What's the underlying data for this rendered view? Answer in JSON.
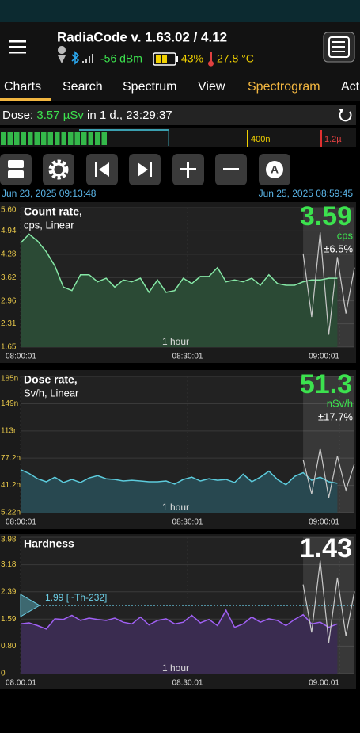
{
  "header": {
    "title": "RadiaCode v. 1.63.02 / 4.12",
    "signal": "-56 dBm",
    "battery": "43%",
    "temperature": "27.8 °C"
  },
  "tabs": [
    "Charts",
    "Search",
    "Spectrum",
    "View",
    "Spectrogram",
    "Act"
  ],
  "dose": {
    "label": "Dose:",
    "value": "3.57 µSv",
    "duration": "in 1 d., 23:29:37"
  },
  "scale_marks": [
    "400n",
    "1.2µ"
  ],
  "button_label": "A",
  "time_range": {
    "start": "Jun 23, 2025 09:13:48",
    "end": "Jun 25, 2025 08:59:45"
  },
  "charts": [
    {
      "type": "line",
      "title": "Count rate,",
      "subtitle": "cps, Linear",
      "reading": "3.59",
      "reading_color": "#3ce24e",
      "unit": "cps",
      "error": "±6.5%",
      "window": "1 hour",
      "xticks": [
        "08:00:01",
        "08:30:01",
        "09:00:01"
      ],
      "ylim": [
        1.65,
        5.6
      ],
      "yticks": [
        {
          "value": 5.6,
          "label": "5.60"
        },
        4.94,
        4.28,
        3.62,
        2.96,
        2.31,
        1.65
      ],
      "series": [
        {
          "color": "#86e8a6",
          "fill": "#2b4a35",
          "values": [
            4.6,
            4.85,
            4.65,
            4.35,
            3.95,
            3.35,
            3.25,
            3.7,
            3.7,
            3.5,
            3.6,
            3.35,
            3.55,
            3.5,
            3.6,
            3.2,
            3.55,
            3.2,
            3.25,
            3.6,
            3.45,
            3.65,
            3.65,
            3.9,
            3.5,
            3.55,
            3.5,
            3.6,
            3.4,
            3.7,
            3.45,
            3.4,
            3.4,
            3.5,
            3.55,
            3.55,
            3.6,
            3.6,
            null,
            null
          ]
        },
        {
          "color": "#c8c8c8",
          "values": [
            null,
            null,
            null,
            null,
            null,
            null,
            null,
            null,
            null,
            null,
            null,
            null,
            null,
            null,
            null,
            null,
            null,
            null,
            null,
            null,
            null,
            null,
            null,
            null,
            null,
            null,
            null,
            null,
            null,
            null,
            null,
            null,
            null,
            4.3,
            2.5,
            4.9,
            2.0,
            4.2,
            2.6,
            3.9
          ]
        }
      ]
    },
    {
      "type": "line",
      "title": "Dose rate,",
      "subtitle": "Sv/h, Linear",
      "reading": "51.3",
      "reading_color": "#3ce24e",
      "unit": "nSv/h",
      "error": "±17.7%",
      "window": "1 hour",
      "xticks": [
        "08:00:01",
        "08:30:01",
        "09:00:01"
      ],
      "ylim": [
        5.22,
        185
      ],
      "yticks": [
        {
          "value": 185,
          "label": "185n"
        },
        {
          "value": 149,
          "label": "149n"
        },
        {
          "value": 113,
          "label": "113n"
        },
        {
          "value": 77.2,
          "label": "77.2n"
        },
        {
          "value": 41.2,
          "label": "41.2n"
        },
        {
          "value": 5.22,
          "label": "5.22n"
        }
      ],
      "series": [
        {
          "color": "#5ccbdc",
          "fill": "#284850",
          "values": [
            62,
            57,
            50,
            46,
            52,
            45,
            49,
            45,
            51,
            54,
            50,
            49,
            47,
            48,
            47,
            46,
            46,
            47,
            43,
            49,
            52,
            47,
            50,
            48,
            49,
            45,
            56,
            46,
            52,
            60,
            49,
            42,
            53,
            58,
            48,
            52,
            46,
            44,
            null,
            null
          ]
        },
        {
          "color": "#c8c8c8",
          "values": [
            null,
            null,
            null,
            null,
            null,
            null,
            null,
            null,
            null,
            null,
            null,
            null,
            null,
            null,
            null,
            null,
            null,
            null,
            null,
            null,
            null,
            null,
            null,
            null,
            null,
            null,
            null,
            null,
            null,
            null,
            null,
            null,
            null,
            75,
            30,
            90,
            25,
            80,
            35,
            70
          ]
        }
      ]
    },
    {
      "type": "line",
      "title": "Hardness",
      "reading": "1.43",
      "reading_color": "#ffffff",
      "window": "1 hour",
      "xticks": [
        "08:00:01",
        "08:30:01",
        "09:00:01"
      ],
      "ylim": [
        0,
        3.98
      ],
      "yticks": [
        3.98,
        3.18,
        2.39,
        1.59,
        {
          "value": 0.8,
          "label": "0.80"
        },
        0
      ],
      "reference": {
        "value": 1.99,
        "label": "1.99 [~Th-232]"
      },
      "series": [
        {
          "color": "#a060f4",
          "fill": "#3a2c50",
          "values": [
            1.45,
            1.48,
            1.4,
            1.3,
            1.6,
            1.58,
            1.7,
            1.55,
            1.62,
            1.58,
            1.55,
            1.62,
            1.5,
            1.45,
            1.65,
            1.42,
            1.55,
            1.6,
            1.45,
            1.5,
            1.7,
            1.48,
            1.58,
            1.4,
            1.85,
            1.35,
            1.45,
            1.65,
            1.5,
            1.6,
            1.55,
            1.4,
            1.58,
            1.72,
            1.45,
            1.5,
            1.35,
            1.45,
            null,
            null
          ]
        },
        {
          "color": "#c8c8c8",
          "values": [
            null,
            null,
            null,
            null,
            null,
            null,
            null,
            null,
            null,
            null,
            null,
            null,
            null,
            null,
            null,
            null,
            null,
            null,
            null,
            null,
            null,
            null,
            null,
            null,
            null,
            null,
            null,
            null,
            null,
            null,
            null,
            null,
            null,
            2.6,
            1.2,
            3.3,
            0.9,
            2.8,
            1.1,
            2.4
          ]
        }
      ]
    }
  ]
}
